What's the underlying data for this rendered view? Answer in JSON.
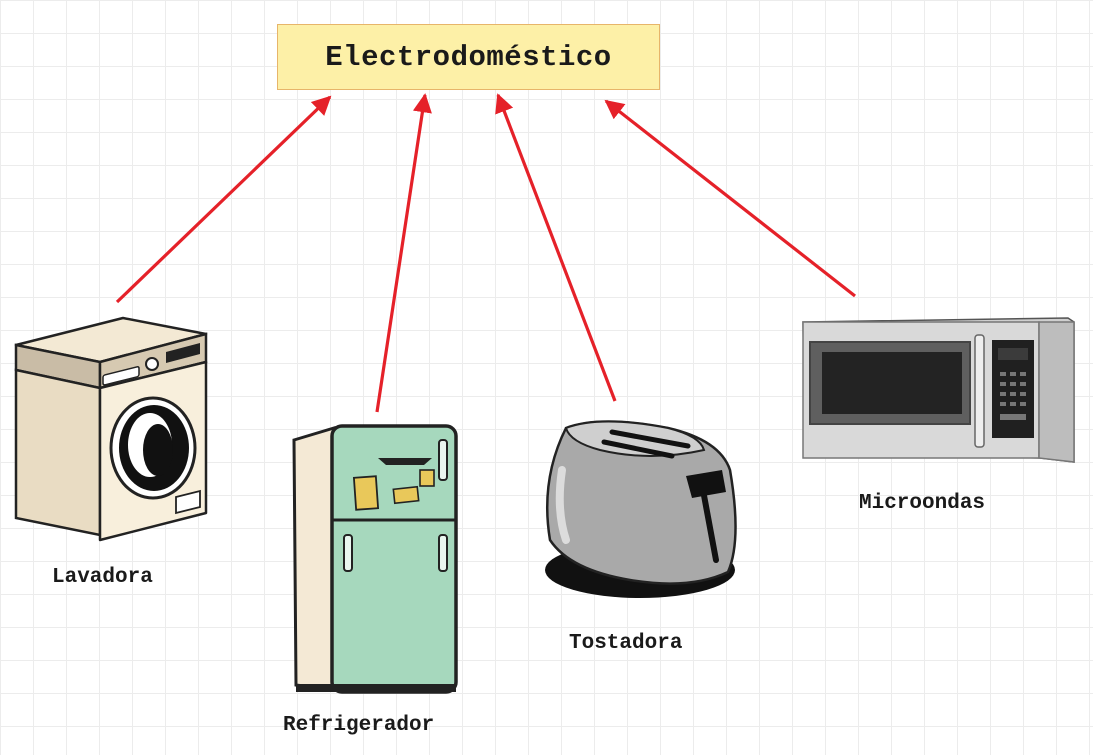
{
  "diagram": {
    "root": {
      "label": "Electrodoméstico"
    },
    "children": [
      {
        "id": "lavadora",
        "label": "Lavadora",
        "icon": "washing-machine-icon"
      },
      {
        "id": "refrigerador",
        "label": "Refrigerador",
        "icon": "refrigerator-icon"
      },
      {
        "id": "tostadora",
        "label": "Tostadora",
        "icon": "toaster-icon"
      },
      {
        "id": "microondas",
        "label": "Microondas",
        "icon": "microwave-icon"
      }
    ],
    "colors": {
      "arrow": "#e52129",
      "root_fill": "#fdf0a7",
      "root_border": "#e7b56a",
      "fridge": "#a6d8bd",
      "washer": "#f7eedb",
      "toaster": "#a9a9a9",
      "microwave": "#cfcfcf"
    }
  }
}
